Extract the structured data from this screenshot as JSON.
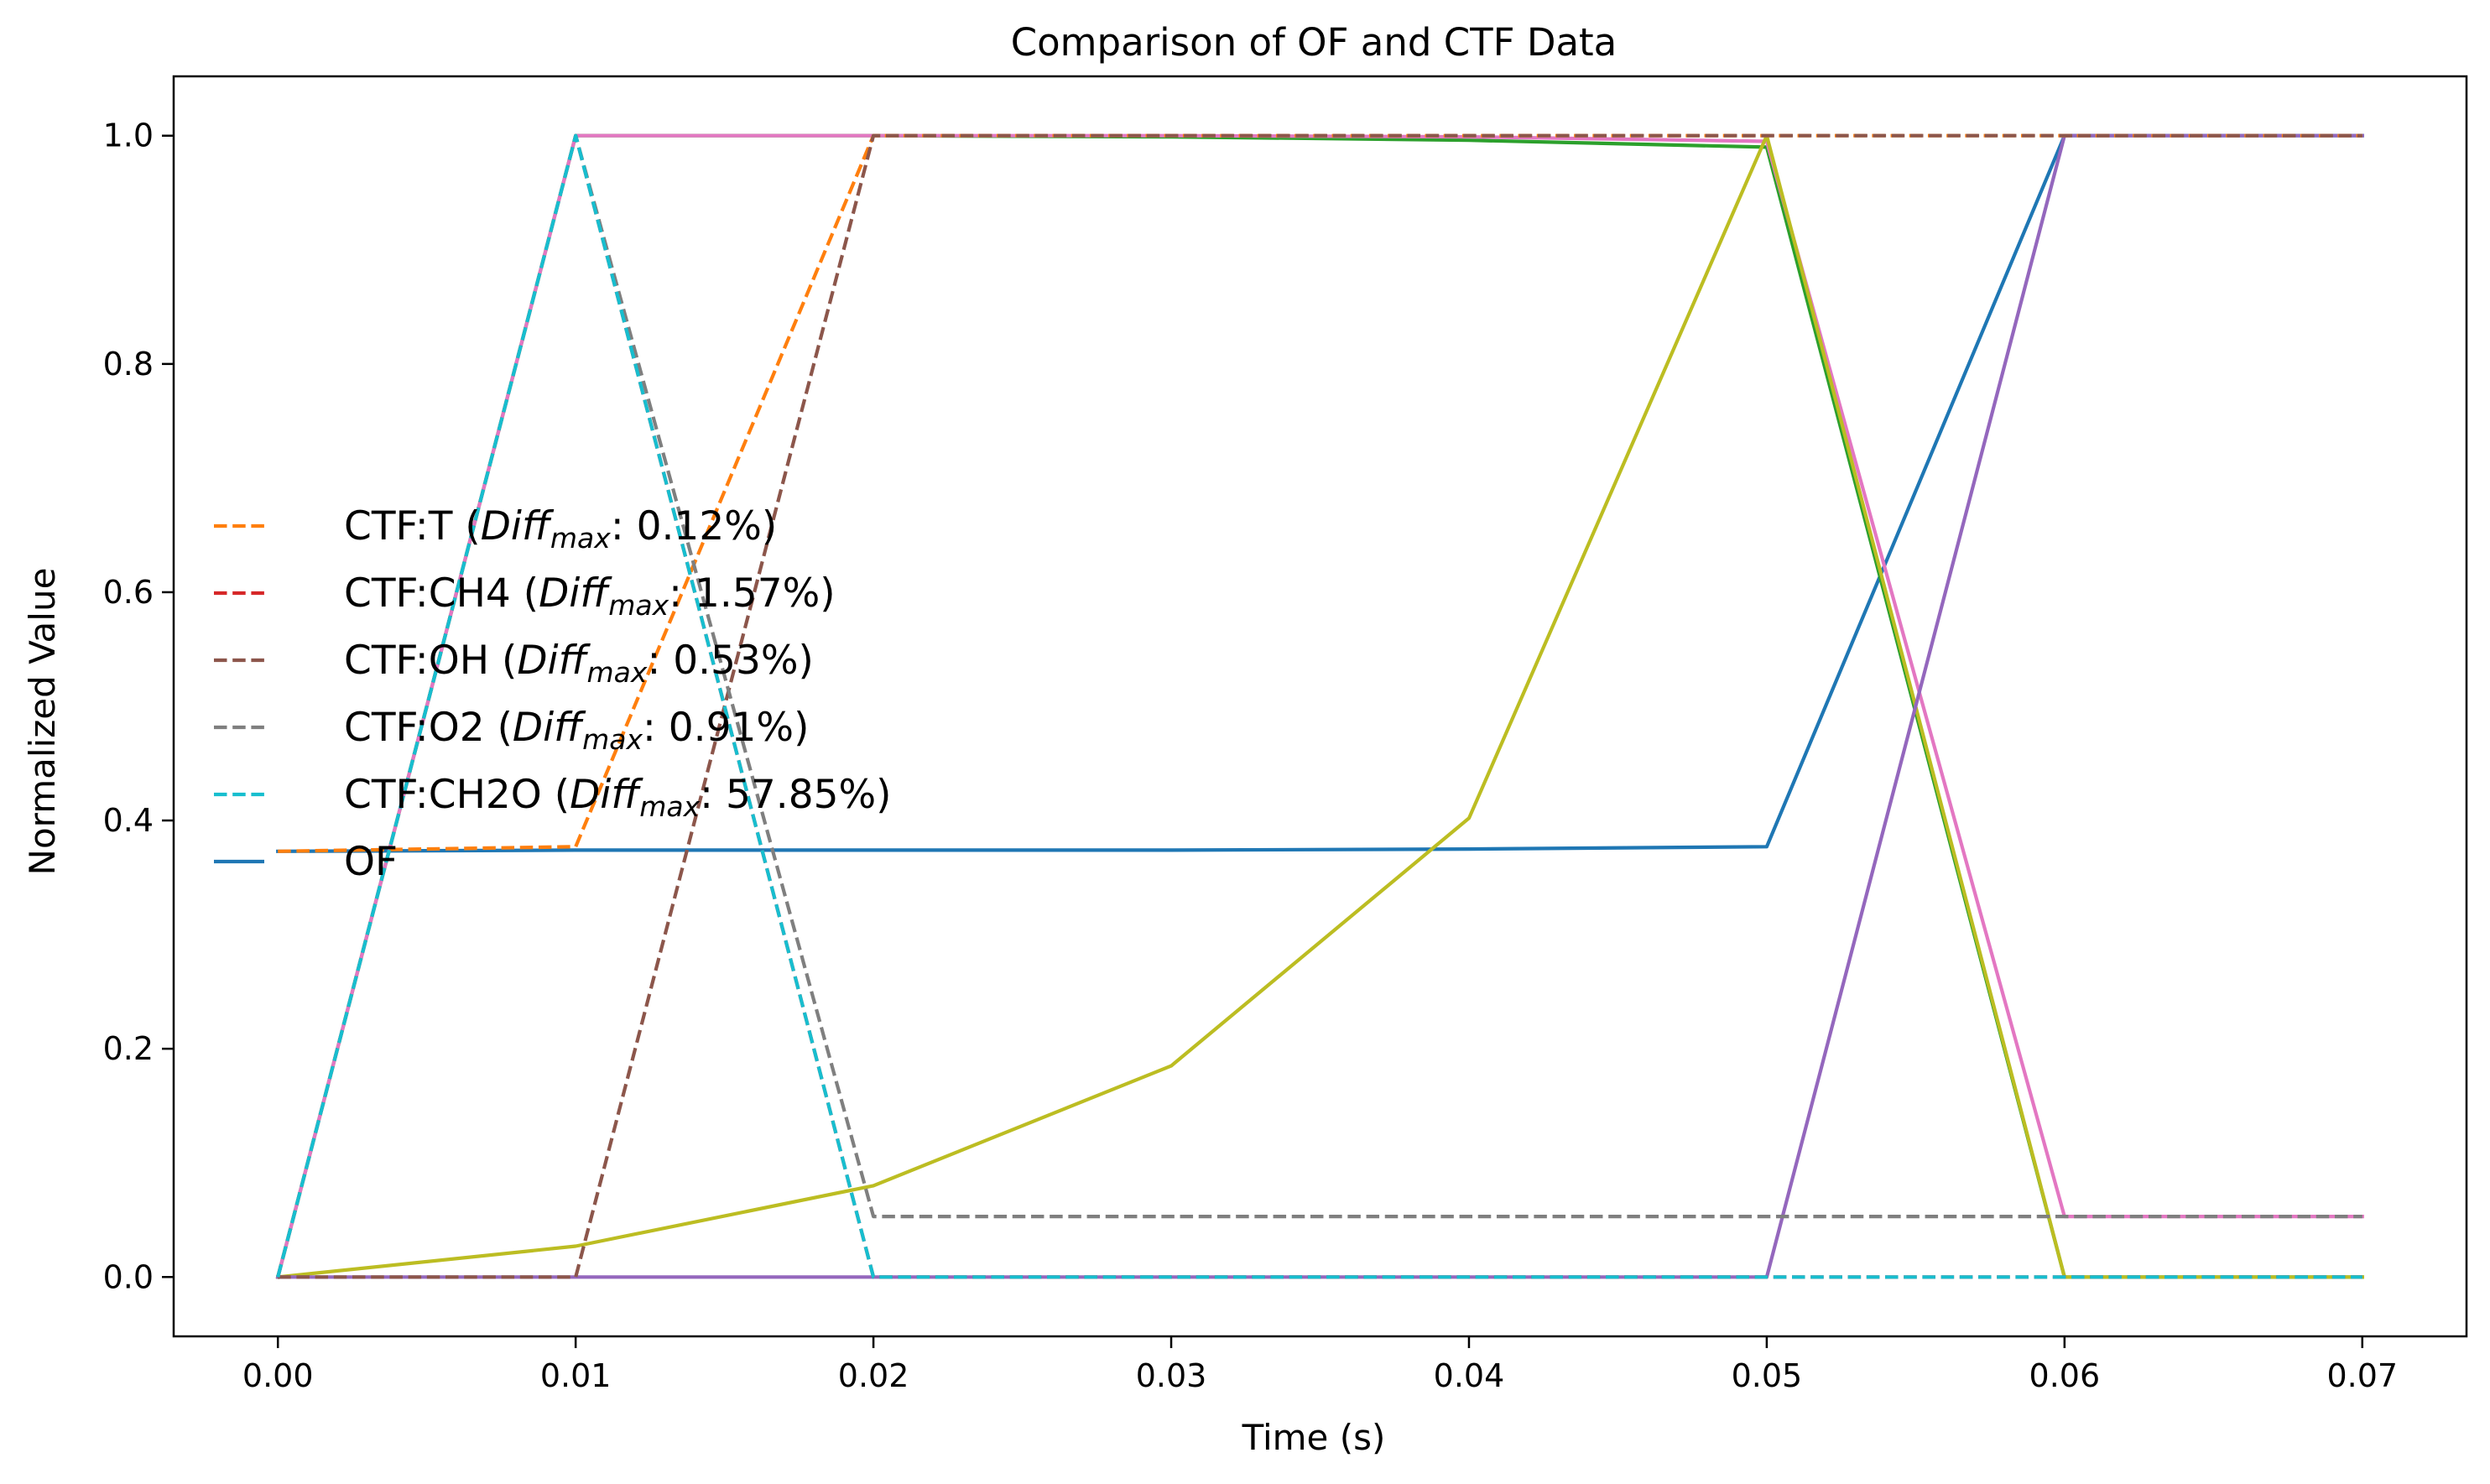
{
  "chart_data": {
    "type": "line",
    "title": "Comparison of OF and CTF Data",
    "xlabel": "Time (s)",
    "ylabel": "Normalized Value",
    "xlim": [
      -0.0035,
      0.0735
    ],
    "ylim": [
      -0.052,
      1.052
    ],
    "x_ticks": [
      0.0,
      0.01,
      0.02,
      0.03,
      0.04,
      0.05,
      0.06,
      0.07
    ],
    "x_tick_labels": [
      "0.00",
      "0.01",
      "0.02",
      "0.03",
      "0.04",
      "0.05",
      "0.06",
      "0.07"
    ],
    "y_ticks": [
      0.0,
      0.2,
      0.4,
      0.6,
      0.8,
      1.0
    ],
    "y_tick_labels": [
      "0.0",
      "0.2",
      "0.4",
      "0.6",
      "0.8",
      "1.0"
    ],
    "grid": false,
    "legend_position": "center-left",
    "legend": [
      {
        "prefix": "CTF:T (",
        "italic": "Diff",
        "sub": "max",
        "suffix": ": 0.12%)",
        "color": "#ff7f0e",
        "dash": true
      },
      {
        "prefix": "CTF:CH4 (",
        "italic": "Diff",
        "sub": "max",
        "suffix": ": 1.57%)",
        "color": "#d62728",
        "dash": true
      },
      {
        "prefix": "CTF:OH (",
        "italic": "Diff",
        "sub": "max",
        "suffix": ": 0.53%)",
        "color": "#8c564b",
        "dash": true
      },
      {
        "prefix": "CTF:O2 (",
        "italic": "Diff",
        "sub": "max",
        "suffix": ": 0.91%)",
        "color": "#7f7f7f",
        "dash": true
      },
      {
        "prefix": "CTF:CH2O (",
        "italic": "Diff",
        "sub": "max",
        "suffix": ": 57.85%)",
        "color": "#17becf",
        "dash": true
      },
      {
        "prefix": "OF",
        "italic": "",
        "sub": "",
        "suffix": "",
        "color": "#1f77b4",
        "dash": false
      }
    ],
    "x": [
      0.0,
      0.01,
      0.02,
      0.03,
      0.04,
      0.05,
      0.06,
      0.07
    ],
    "series": [
      {
        "name": "OF",
        "color": "#1f77b4",
        "dash": false,
        "values": [
          0.373,
          0.374,
          0.374,
          0.374,
          0.375,
          0.377,
          1.0,
          1.0
        ]
      },
      {
        "color": "#2ca02c",
        "dash": false,
        "values": [
          0.0,
          1.0,
          1.0,
          0.999,
          0.996,
          0.99,
          0.0,
          0.0
        ]
      },
      {
        "color": "#e377c2",
        "dash": false,
        "values": [
          0.0,
          1.0,
          1.0,
          1.0,
          0.999,
          0.995,
          0.053,
          0.053
        ]
      },
      {
        "color": "#bcbd22",
        "dash": false,
        "values": [
          0.0,
          0.027,
          0.08,
          0.185,
          0.402,
          1.0,
          0.0,
          0.0
        ]
      },
      {
        "color": "#9467bd",
        "dash": false,
        "values": [
          0.0,
          0.0,
          0.0,
          0.0,
          0.0,
          0.0,
          1.0,
          1.0
        ]
      },
      {
        "name": "CTF:T",
        "color": "#ff7f0e",
        "dash": true,
        "values": [
          0.373,
          0.377,
          1.0,
          1.0,
          1.0,
          1.0,
          1.0,
          1.0
        ]
      },
      {
        "name": "CTF:CH4",
        "color": "#d62728",
        "dash": true,
        "values": [
          0.0,
          1.0,
          0.0,
          0.0,
          0.0,
          0.0,
          0.0,
          0.0
        ]
      },
      {
        "name": "CTF:OH",
        "color": "#8c564b",
        "dash": true,
        "values": [
          0.0,
          0.0,
          1.0,
          1.0,
          1.0,
          1.0,
          1.0,
          1.0
        ]
      },
      {
        "name": "CTF:O2",
        "color": "#7f7f7f",
        "dash": true,
        "values": [
          0.0,
          1.0,
          0.053,
          0.053,
          0.053,
          0.053,
          0.053,
          0.053
        ]
      },
      {
        "name": "CTF:CH2O",
        "color": "#17becf",
        "dash": true,
        "values": [
          0.0,
          1.0,
          0.0,
          0.0,
          0.0,
          0.0,
          0.0,
          0.0
        ]
      }
    ]
  }
}
